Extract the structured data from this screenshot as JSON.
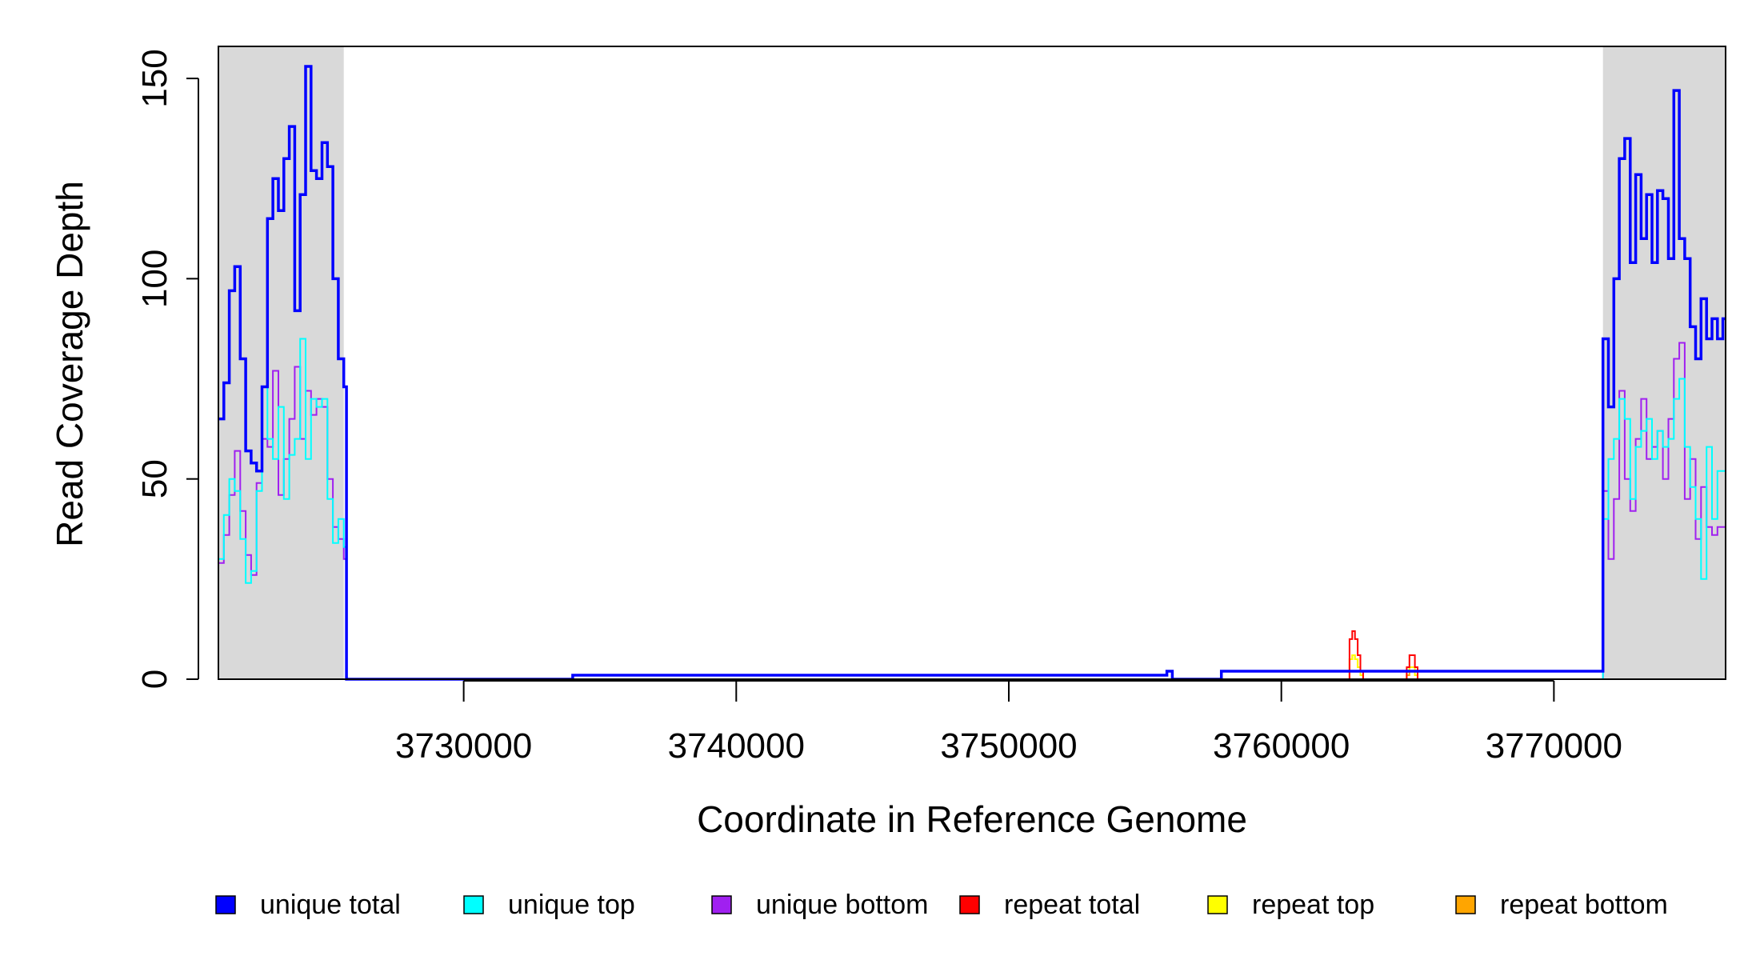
{
  "chart_data": {
    "type": "line",
    "title": "",
    "xlabel": "Coordinate in Reference Genome",
    "ylabel": "Read Coverage Depth",
    "xlim": [
      3721000,
      3776300
    ],
    "ylim": [
      0,
      158
    ],
    "x_ticks": [
      3730000,
      3740000,
      3750000,
      3760000,
      3770000
    ],
    "x_tick_labels": [
      "3730000",
      "3740000",
      "3750000",
      "3760000",
      "3770000"
    ],
    "y_ticks": [
      0,
      50,
      100,
      150
    ],
    "y_tick_labels": [
      "0",
      "50",
      "100",
      "150"
    ],
    "shaded_regions": [
      [
        3721000,
        3725600
      ],
      [
        3771800,
        3776300
      ]
    ],
    "shade_color": "#d9d9d9",
    "legend_position": "bottom",
    "series": [
      {
        "name": "unique total",
        "color": "#0000ff",
        "x": [
          3721000,
          3721200,
          3721400,
          3721600,
          3721800,
          3722000,
          3722200,
          3722400,
          3722600,
          3722800,
          3723000,
          3723200,
          3723400,
          3723600,
          3723800,
          3724000,
          3724200,
          3724400,
          3724600,
          3724800,
          3725000,
          3725200,
          3725400,
          3725600,
          3725700,
          3734000,
          3755800,
          3756000,
          3757800,
          3771800,
          3772000,
          3772200,
          3772400,
          3772600,
          3772800,
          3773000,
          3773200,
          3773400,
          3773600,
          3773800,
          3774000,
          3774200,
          3774400,
          3774600,
          3774800,
          3775000,
          3775200,
          3775400,
          3775600,
          3775800,
          3776000,
          3776200,
          3776300
        ],
        "y": [
          65,
          74,
          97,
          103,
          80,
          57,
          54,
          52,
          73,
          115,
          125,
          117,
          130,
          138,
          92,
          121,
          153,
          127,
          125,
          134,
          128,
          100,
          80,
          73,
          0,
          1,
          2,
          0,
          2,
          85,
          68,
          100,
          130,
          135,
          104,
          126,
          110,
          121,
          104,
          122,
          120,
          105,
          147,
          110,
          105,
          88,
          80,
          95,
          85,
          90,
          85,
          90,
          90
        ]
      },
      {
        "name": "unique top",
        "color": "#00ffff",
        "x": [
          3721000,
          3721200,
          3721400,
          3721600,
          3721800,
          3722000,
          3722200,
          3722400,
          3722600,
          3722800,
          3723000,
          3723200,
          3723400,
          3723600,
          3723800,
          3724000,
          3724200,
          3724400,
          3724600,
          3724800,
          3725000,
          3725200,
          3725400,
          3725600,
          3725700,
          3771800,
          3772000,
          3772200,
          3772400,
          3772600,
          3772800,
          3773000,
          3773200,
          3773400,
          3773600,
          3773800,
          3774000,
          3774200,
          3774400,
          3774600,
          3774800,
          3775000,
          3775200,
          3775400,
          3775600,
          3775800,
          3776000,
          3776300
        ],
        "y": [
          30,
          41,
          50,
          47,
          35,
          24,
          27,
          47,
          73,
          60,
          55,
          68,
          45,
          56,
          60,
          85,
          55,
          70,
          68,
          70,
          45,
          34,
          40,
          33,
          0,
          40,
          55,
          60,
          70,
          65,
          45,
          58,
          62,
          65,
          55,
          62,
          58,
          60,
          70,
          75,
          58,
          48,
          40,
          25,
          58,
          40,
          52,
          52
        ]
      },
      {
        "name": "unique bottom",
        "color": "#a020f0",
        "x": [
          3721000,
          3721200,
          3721400,
          3721600,
          3721800,
          3722000,
          3722200,
          3722400,
          3722600,
          3722800,
          3723000,
          3723200,
          3723400,
          3723600,
          3723800,
          3724000,
          3724200,
          3724400,
          3724600,
          3724800,
          3725000,
          3725200,
          3725400,
          3725600,
          3725700,
          3771800,
          3772000,
          3772200,
          3772400,
          3772600,
          3772800,
          3773000,
          3773200,
          3773400,
          3773600,
          3773800,
          3774000,
          3774200,
          3774400,
          3774600,
          3774800,
          3775000,
          3775200,
          3775400,
          3775600,
          3775800,
          3776000,
          3776300
        ],
        "y": [
          29,
          36,
          46,
          57,
          42,
          31,
          26,
          49,
          60,
          58,
          77,
          46,
          55,
          65,
          78,
          60,
          72,
          66,
          70,
          68,
          50,
          38,
          35,
          30,
          0,
          47,
          30,
          45,
          72,
          50,
          42,
          60,
          70,
          55,
          58,
          62,
          50,
          65,
          80,
          84,
          45,
          55,
          35,
          48,
          38,
          36,
          38,
          38
        ]
      },
      {
        "name": "repeat total",
        "color": "#ff0000",
        "x": [
          3721000,
          3762400,
          3762500,
          3762600,
          3762700,
          3762800,
          3762900,
          3763000,
          3764500,
          3764600,
          3764700,
          3764800,
          3764900,
          3765000,
          3776300
        ],
        "y": [
          0,
          0,
          10,
          12,
          10,
          6,
          2,
          0,
          0,
          3,
          6,
          6,
          3,
          0,
          0
        ]
      },
      {
        "name": "repeat top",
        "color": "#ffff00",
        "x": [
          3721000,
          3762400,
          3762500,
          3762600,
          3762700,
          3762800,
          3762900,
          3763000,
          3764500,
          3764600,
          3764700,
          3764800,
          3764900,
          3765000,
          3776300
        ],
        "y": [
          0,
          0,
          5,
          6,
          5,
          3,
          1,
          0,
          0,
          2,
          3,
          3,
          1,
          0,
          0
        ]
      },
      {
        "name": "repeat bottom",
        "color": "#ffa500",
        "x": [
          3721000,
          3762400,
          3762500,
          3762600,
          3762700,
          3762800,
          3762900,
          3763000,
          3764500,
          3764600,
          3764700,
          3764800,
          3764900,
          3765000,
          3776300
        ],
        "y": [
          0,
          0,
          5,
          6,
          5,
          3,
          1,
          0,
          0,
          1,
          3,
          3,
          2,
          0,
          0
        ]
      }
    ]
  }
}
